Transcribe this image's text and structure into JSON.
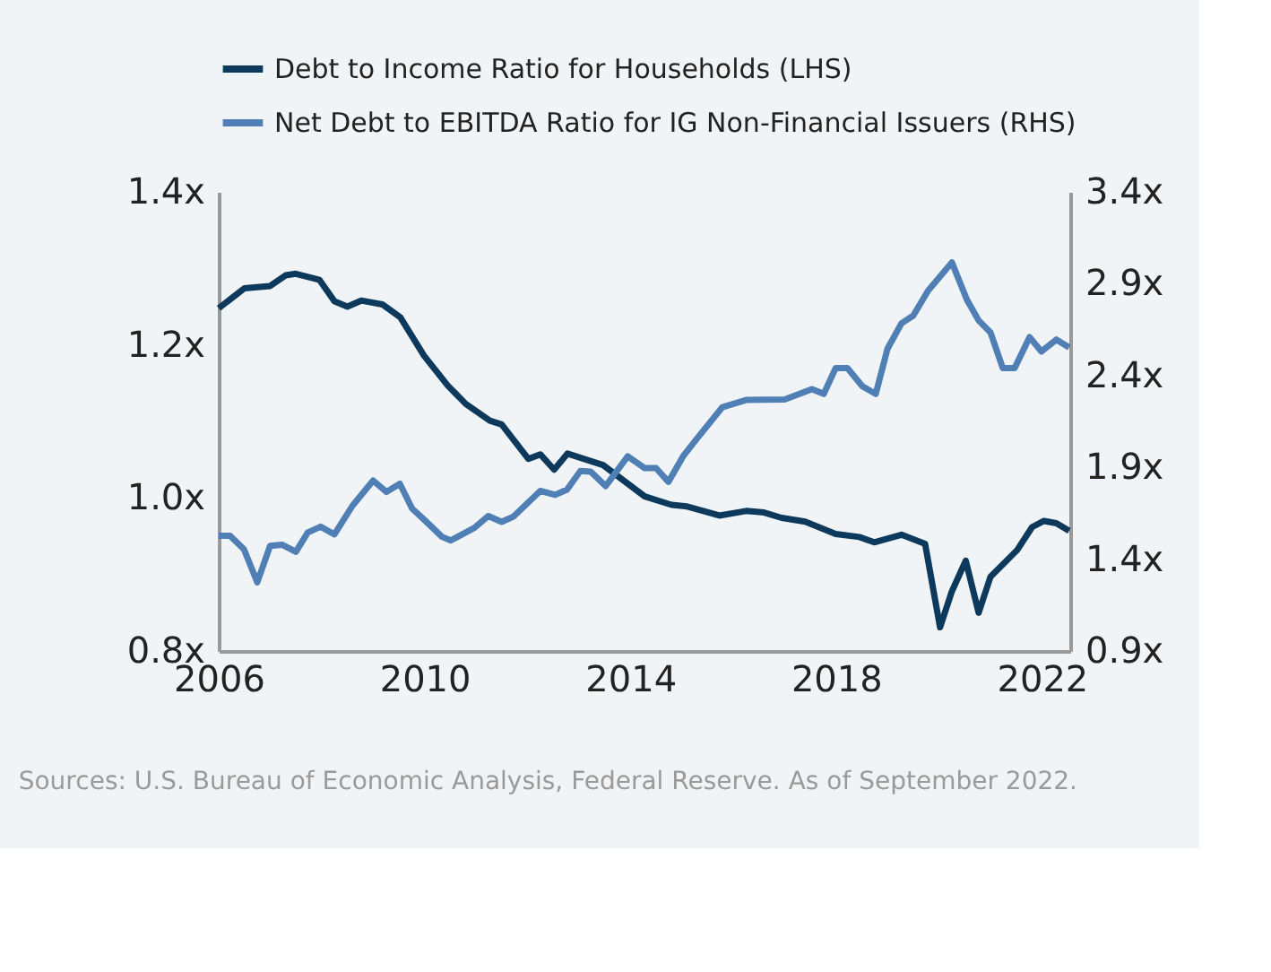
{
  "chart_data": {
    "type": "line",
    "annotations": [
      "Sources: U.S. Bureau of Economic Analysis, Federal Reserve. As of September 2022."
    ],
    "xlim": [
      2006,
      2022.55
    ],
    "xticks": [
      2006,
      2010,
      2014,
      2018,
      2022
    ],
    "ylim": [
      0.8,
      1.4
    ],
    "yticks": [
      {
        "value": 0.8,
        "label": "0.8x"
      },
      {
        "value": 1.0,
        "label": "1.0x"
      },
      {
        "value": 1.2,
        "label": "1.2x"
      },
      {
        "value": 1.4,
        "label": "1.4x"
      }
    ],
    "y2lim": [
      0.9,
      3.4
    ],
    "y2ticks": [
      {
        "value": 0.9,
        "label": "0.9x"
      },
      {
        "value": 1.4,
        "label": "1.4x"
      },
      {
        "value": 1.9,
        "label": "1.9x"
      },
      {
        "value": 2.4,
        "label": "2.4x"
      },
      {
        "value": 2.9,
        "label": "2.9x"
      },
      {
        "value": 3.4,
        "label": "3.4x"
      }
    ],
    "grid": false,
    "legend": "top",
    "marker": "none",
    "line_style": "solid",
    "series": [
      {
        "name": "Debt to Income Ratio for Households (LHS)",
        "color": "#0d3a5c",
        "axis": "y",
        "x": [
          2006.0,
          2006.5,
          2007.0,
          2007.3,
          2007.5,
          2007.96,
          2008.25,
          2008.5,
          2008.77,
          2009.18,
          2009.53,
          2009.99,
          2010.45,
          2010.8,
          2011.27,
          2011.5,
          2012.02,
          2012.25,
          2012.52,
          2012.78,
          2013.47,
          2014.28,
          2014.8,
          2015.09,
          2015.73,
          2016.25,
          2016.6,
          2016.94,
          2017.4,
          2017.99,
          2018.45,
          2018.74,
          2019.27,
          2019.73,
          2020.02,
          2020.25,
          2020.52,
          2020.77,
          2021.0,
          2021.52,
          2021.81,
          2022.04,
          2022.28,
          2022.53
        ],
        "values": [
          1.248,
          1.274,
          1.277,
          1.291,
          1.293,
          1.285,
          1.257,
          1.25,
          1.258,
          1.253,
          1.236,
          1.186,
          1.147,
          1.123,
          1.101,
          1.096,
          1.051,
          1.057,
          1.037,
          1.058,
          1.043,
          1.002,
          0.991,
          0.989,
          0.977,
          0.983,
          0.981,
          0.974,
          0.969,
          0.953,
          0.949,
          0.942,
          0.952,
          0.94,
          0.831,
          0.878,
          0.918,
          0.85,
          0.897,
          0.932,
          0.962,
          0.97,
          0.967,
          0.957
        ]
      },
      {
        "name": "Net Debt to EBITDA Ratio for IG Non-Financial Issuers (RHS)",
        "color": "#4f7fb5",
        "axis": "y2",
        "x": [
          2006.0,
          2006.22,
          2006.49,
          2006.75,
          2007.0,
          2007.23,
          2007.5,
          2007.73,
          2007.98,
          2008.25,
          2008.6,
          2009.0,
          2009.26,
          2009.52,
          2009.76,
          2009.99,
          2010.34,
          2010.51,
          2010.97,
          2011.24,
          2011.5,
          2011.73,
          2012.25,
          2012.54,
          2012.77,
          2013.03,
          2013.23,
          2013.52,
          2013.95,
          2014.28,
          2014.5,
          2014.74,
          2015.03,
          2015.32,
          2015.79,
          2016.25,
          2017.0,
          2017.53,
          2017.76,
          2017.99,
          2018.22,
          2018.51,
          2018.77,
          2019.0,
          2019.27,
          2019.5,
          2019.79,
          2020.25,
          2020.54,
          2020.77,
          2021.0,
          2021.24,
          2021.47,
          2021.76,
          2021.99,
          2022.28,
          2022.53
        ],
        "values": [
          1.528,
          1.528,
          1.454,
          1.274,
          1.473,
          1.479,
          1.44,
          1.545,
          1.577,
          1.535,
          1.691,
          1.828,
          1.766,
          1.811,
          1.675,
          1.616,
          1.522,
          1.502,
          1.571,
          1.635,
          1.603,
          1.632,
          1.772,
          1.75,
          1.779,
          1.88,
          1.877,
          1.798,
          1.96,
          1.896,
          1.896,
          1.821,
          1.962,
          2.065,
          2.228,
          2.267,
          2.27,
          2.326,
          2.3,
          2.44,
          2.44,
          2.342,
          2.3,
          2.547,
          2.684,
          2.726,
          2.863,
          3.016,
          2.814,
          2.7,
          2.635,
          2.44,
          2.44,
          2.609,
          2.531,
          2.596,
          2.553
        ]
      }
    ]
  }
}
